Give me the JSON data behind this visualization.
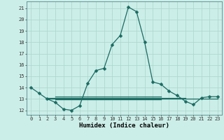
{
  "xlabel": "Humidex (Indice chaleur)",
  "background_color": "#cceee8",
  "grid_color": "#aad4ce",
  "line_color": "#1a6b62",
  "markersize": 2.5,
  "linewidth": 0.9,
  "series": [
    [
      0,
      14
    ],
    [
      1,
      13.5
    ],
    [
      2,
      13.0
    ],
    [
      3,
      12.7
    ],
    [
      4,
      12.1
    ],
    [
      5,
      12.0
    ],
    [
      6,
      12.4
    ],
    [
      7,
      14.4
    ],
    [
      8,
      15.5
    ],
    [
      9,
      15.7
    ],
    [
      10,
      17.8
    ],
    [
      11,
      18.6
    ],
    [
      12,
      21.1
    ],
    [
      13,
      20.7
    ],
    [
      14,
      18.0
    ],
    [
      15,
      14.5
    ],
    [
      16,
      14.3
    ],
    [
      17,
      13.7
    ],
    [
      18,
      13.3
    ],
    [
      19,
      12.8
    ],
    [
      20,
      12.5
    ],
    [
      21,
      13.1
    ],
    [
      22,
      13.2
    ],
    [
      23,
      13.2
    ]
  ],
  "flat_lines": [
    {
      "y": 13.0,
      "x_start": 2,
      "x_end": 23
    },
    {
      "y": 13.1,
      "x_start": 2,
      "x_end": 19
    },
    {
      "y": 13.2,
      "x_start": 3,
      "x_end": 16
    },
    {
      "y": 12.95,
      "x_start": 3,
      "x_end": 16
    }
  ],
  "xlim": [
    -0.5,
    23.5
  ],
  "ylim": [
    11.6,
    21.6
  ],
  "yticks": [
    12,
    13,
    14,
    15,
    16,
    17,
    18,
    19,
    20,
    21
  ],
  "xticks": [
    0,
    1,
    2,
    3,
    4,
    5,
    6,
    7,
    8,
    9,
    10,
    11,
    12,
    13,
    14,
    15,
    16,
    17,
    18,
    19,
    20,
    21,
    22,
    23
  ],
  "tick_fontsize": 5.0,
  "xlabel_fontsize": 6.5
}
